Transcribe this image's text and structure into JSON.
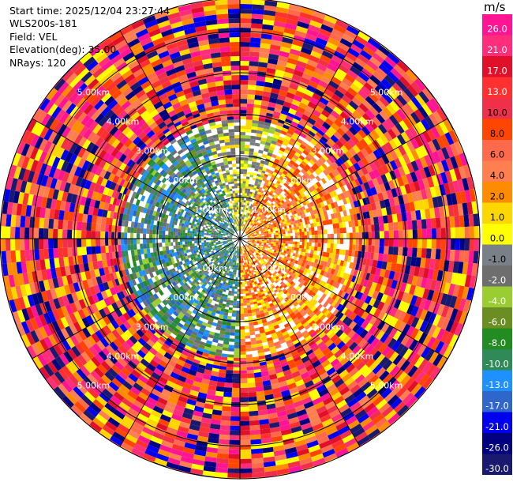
{
  "header": {
    "start_time": "Start time: 2025/12/04 23:27:44",
    "instrument": "WLS200s-181",
    "field": "Field: VEL",
    "elevation": "Elevation(deg): 35.00",
    "nrays": "NRays: 120"
  },
  "chart_data": {
    "type": "heatmap",
    "projection": "polar PPI",
    "nrays": 120,
    "range_rings_km": [
      1.0,
      2.0,
      3.0,
      4.0,
      5.0
    ],
    "range_ring_labels": [
      "1.00km",
      "2.00km",
      "3.00km",
      "4.00km",
      "5.00km"
    ],
    "ring_label_bearings_deg": [
      45,
      135,
      225,
      315
    ],
    "spoke_bearings_deg": [
      0,
      30,
      60,
      90,
      120,
      150,
      180,
      210,
      240,
      270,
      300,
      330
    ],
    "colorbar": {
      "unit": "m/s",
      "ticks": [
        "26.0",
        "21.0",
        "17.0",
        "13.0",
        "10.0",
        "8.0",
        "6.0",
        "4.0",
        "2.0",
        "1.0",
        "0.0",
        "-1.0",
        "-2.0",
        "-4.0",
        "-6.0",
        "-8.0",
        "-10.0",
        "-13.0",
        "-17.0",
        "-21.0",
        "-26.0",
        "-30.0"
      ],
      "colors": [
        "#ff1493",
        "#ff2d7a",
        "#e0102a",
        "#ff3030",
        "#f0304a",
        "#ff4500",
        "#ff6a4a",
        "#ff7f50",
        "#ff8c00",
        "#ffd700",
        "#ffff00",
        "#7a8088",
        "#6e6e6e",
        "#9acd32",
        "#6b8e23",
        "#228b22",
        "#2e8b57",
        "#1e90ff",
        "#2e66cc",
        "#0000ee",
        "#000080",
        "#191970"
      ]
    }
  }
}
